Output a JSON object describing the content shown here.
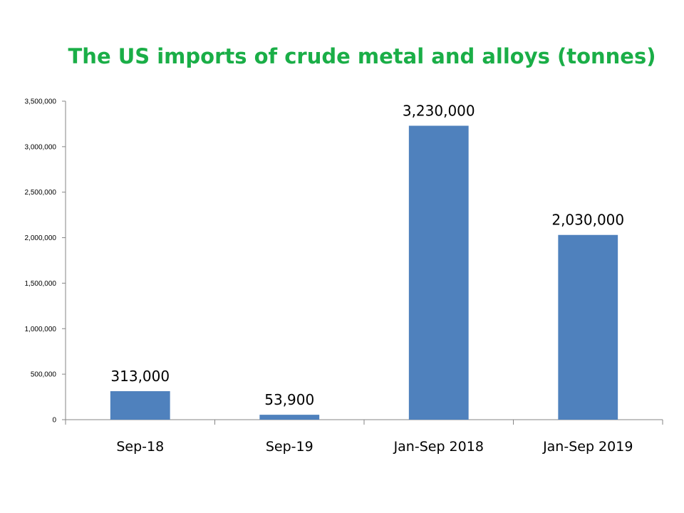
{
  "chart_data": {
    "type": "bar",
    "title": "The US imports of crude metal and alloys (tonnes)",
    "xlabel": "",
    "ylabel": "",
    "categories": [
      "Sep-18",
      "Sep-19",
      "Jan-Sep 2018",
      "Jan-Sep 2019"
    ],
    "values": [
      313000,
      53900,
      3230000,
      2030000
    ],
    "data_labels": [
      "313,000",
      "53,900",
      "3,230,000",
      "2,030,000"
    ],
    "ylim": [
      0,
      3500000
    ],
    "yticks": [
      0,
      500000,
      1000000,
      1500000,
      2000000,
      2500000,
      3000000,
      3500000
    ],
    "ytick_labels": [
      "0",
      "500,000",
      "1,000,000",
      "1,500,000",
      "2,000,000",
      "2,500,000",
      "3,000,000",
      "3,500,000"
    ],
    "bar_color": "#4f81bd",
    "title_color": "#1aae47",
    "grid": false,
    "legend": "none"
  }
}
